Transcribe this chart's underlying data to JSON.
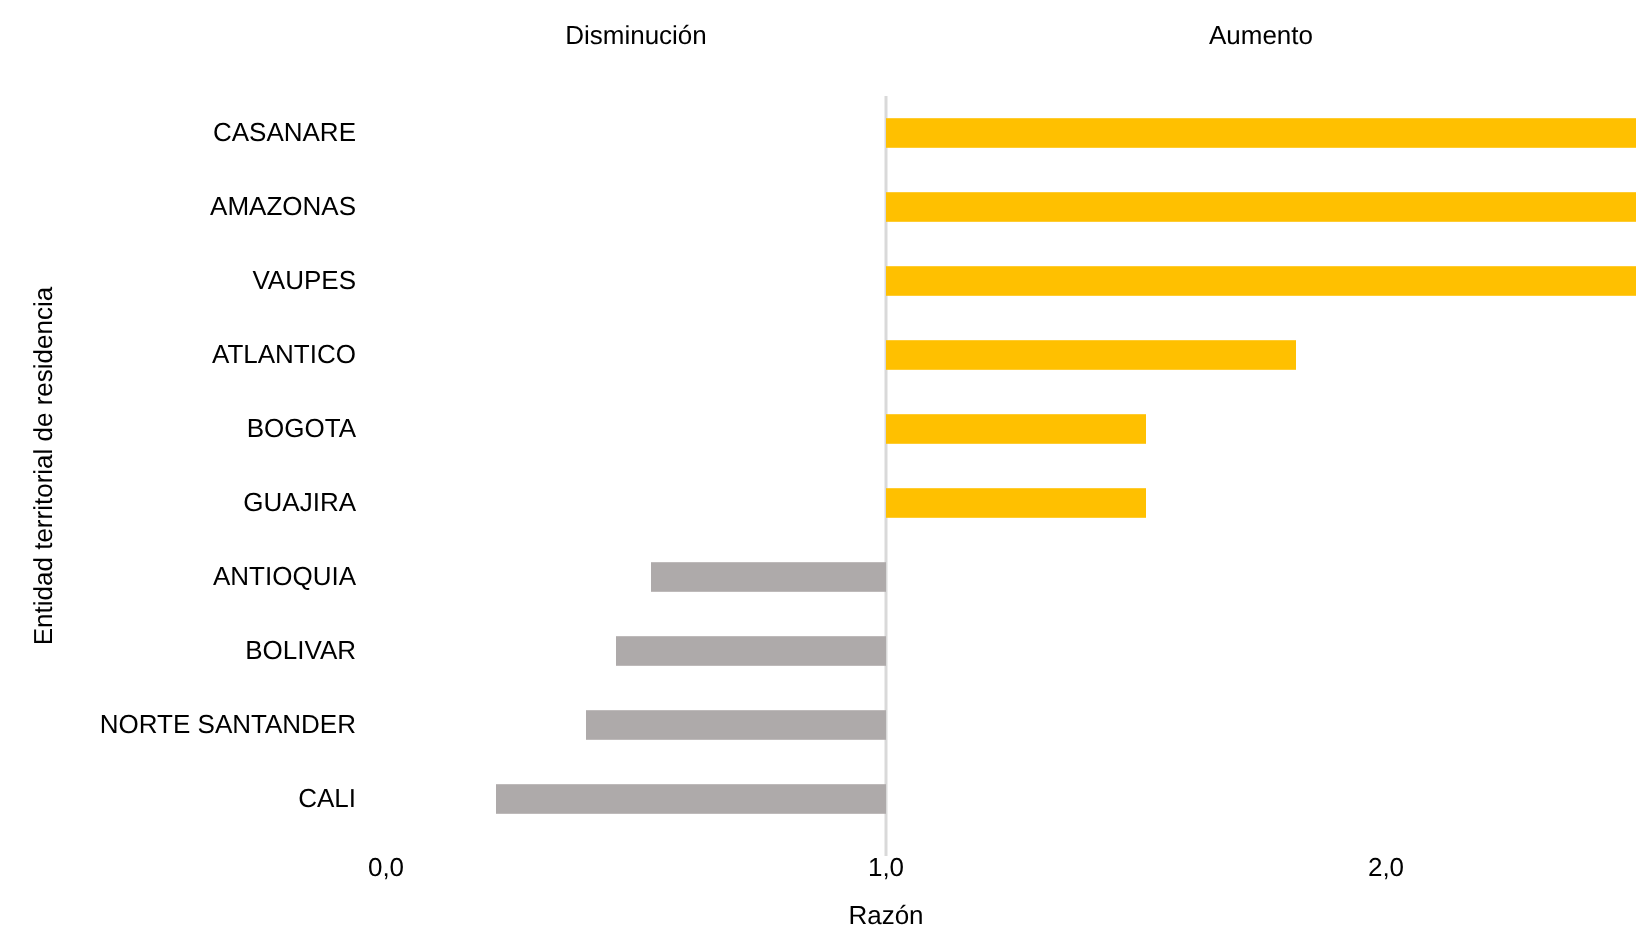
{
  "chart_data": {
    "type": "bar",
    "orientation": "horizontal",
    "categories": [
      "CASANARE",
      "AMAZONAS",
      "VAUPES",
      "ATLANTICO",
      "BOGOTA",
      "GUAJIRA",
      "ANTIOQUIA",
      "BOLIVAR",
      "NORTE SANTANDER",
      "CALI"
    ],
    "base": [
      1,
      1,
      1,
      1,
      1,
      1,
      1,
      1,
      1,
      1
    ],
    "values": [
      1.5,
      1.5,
      1.5,
      0.82,
      0.52,
      0.52,
      -0.47,
      -0.54,
      -0.6,
      -0.78
    ],
    "colors": [
      "#ffc000",
      "#ffc000",
      "#ffc000",
      "#ffc000",
      "#ffc000",
      "#ffc000",
      "#aeaaaa",
      "#aeaaaa",
      "#aeaaaa",
      "#aeaaaa"
    ],
    "xlim": [
      0,
      2.5
    ],
    "xticks": [
      {
        "value": 0,
        "label": "0,0"
      },
      {
        "value": 1,
        "label": "1,0"
      },
      {
        "value": 2,
        "label": "2,0"
      }
    ],
    "xlabel": "Razón",
    "ylabel": "Entidad territorial de residencia",
    "ref_lines": [
      {
        "axis": "x",
        "value": 1,
        "color": "#d9d9d9"
      }
    ],
    "annotations": [
      "Disminución",
      "Aumento"
    ],
    "grid": false
  }
}
